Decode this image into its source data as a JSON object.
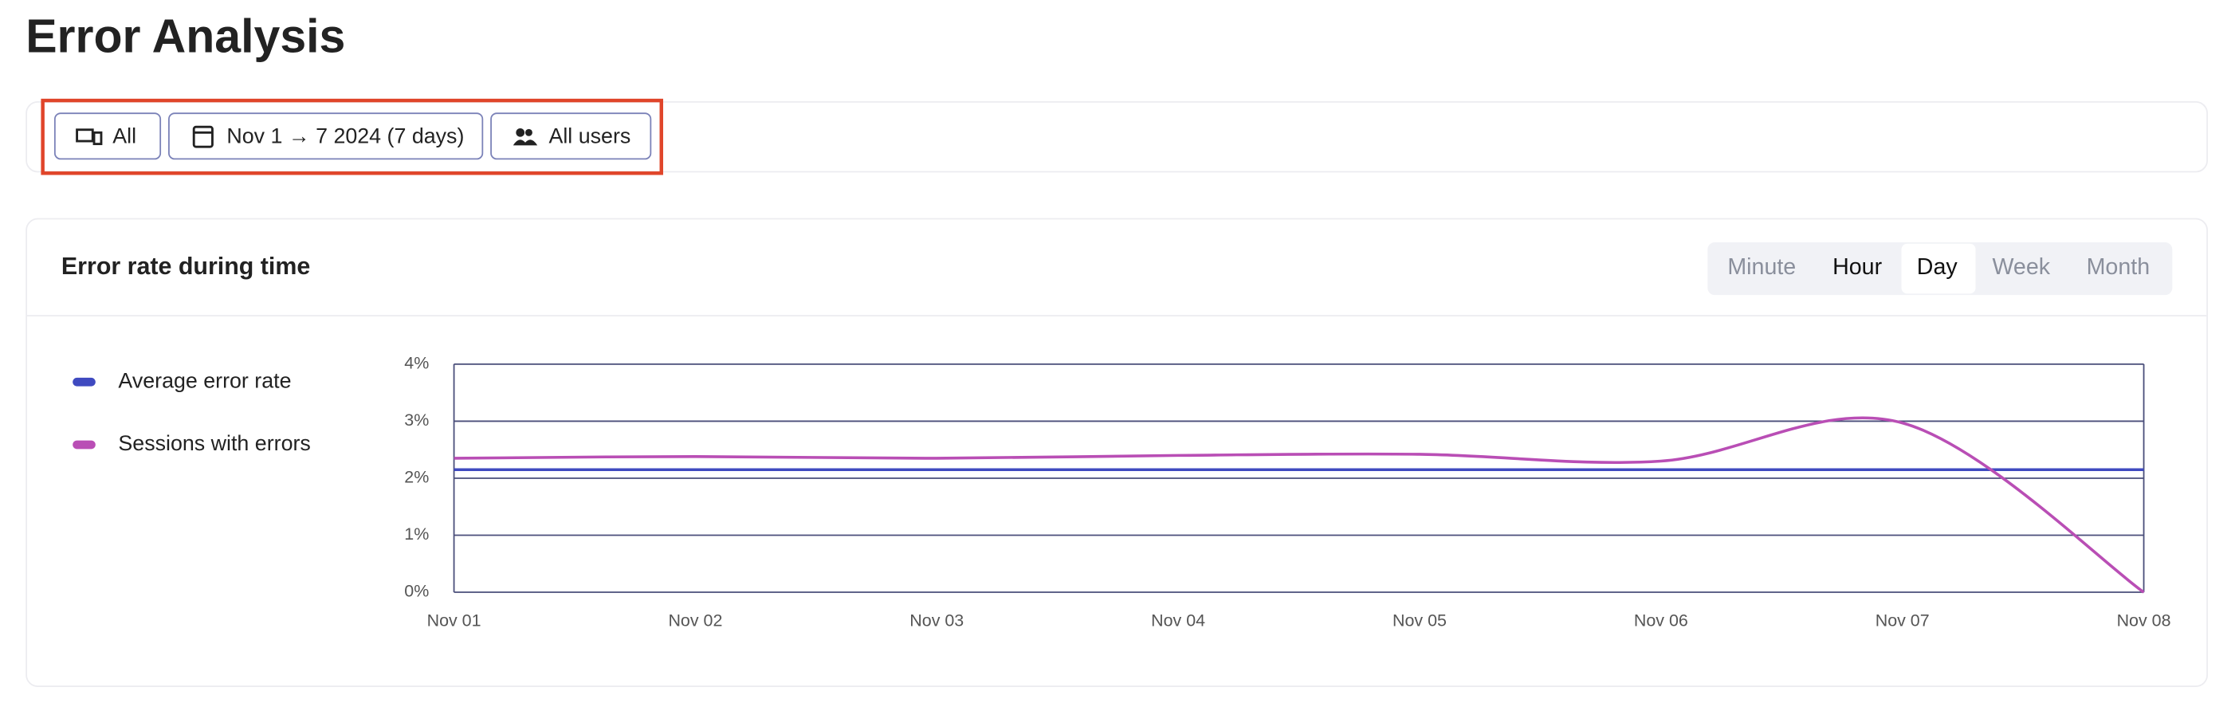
{
  "page_title": "Error Analysis",
  "filters": [
    "All",
    "Nov 1 → 7 2024 (7 days)",
    "All users"
  ],
  "granularity": {
    "options": [
      "Minute",
      "Hour",
      "Day",
      "Week",
      "Month"
    ],
    "selected": "Day",
    "disabled": [
      "Minute",
      "Week",
      "Month"
    ]
  },
  "chart_data": {
    "type": "line",
    "title": "Error rate during time",
    "categories": [
      "Nov 01",
      "Nov 02",
      "Nov 03",
      "Nov 04",
      "Nov 05",
      "Nov 06",
      "Nov 07",
      "Nov 08"
    ],
    "series": [
      {
        "name": "Average error rate",
        "color": "#3f4ac0",
        "values": [
          2.15,
          2.15,
          2.15,
          2.15,
          2.15,
          2.15,
          2.15,
          2.15
        ]
      },
      {
        "name": "Sessions with errors",
        "color": "#b94eb5",
        "values": [
          2.35,
          2.38,
          2.35,
          2.4,
          2.42,
          2.3,
          2.97,
          0
        ]
      }
    ],
    "ylim": [
      0,
      4
    ],
    "yticks": [
      {
        "value": 0,
        "label": "0%"
      },
      {
        "value": 1,
        "label": "1%"
      },
      {
        "value": 2,
        "label": "2%"
      },
      {
        "value": 3,
        "label": "3%"
      },
      {
        "value": 4,
        "label": "4%"
      }
    ],
    "grid": true,
    "smooth": true,
    "legend": "left"
  }
}
